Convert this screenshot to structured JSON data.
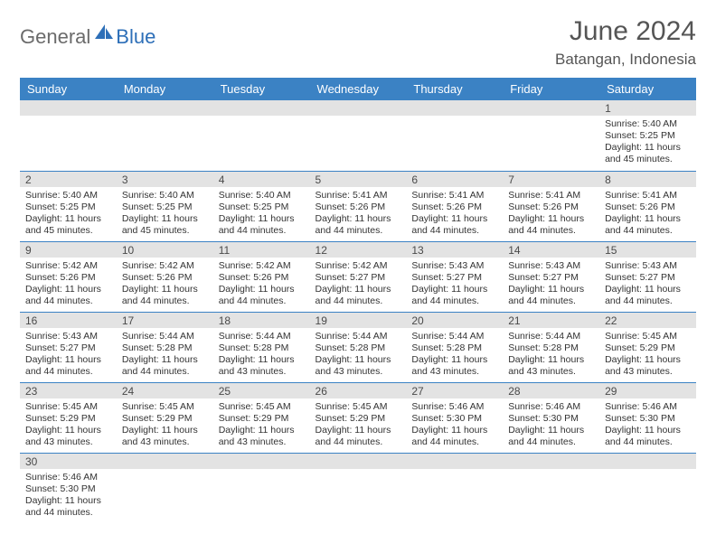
{
  "brand": {
    "part1": "General",
    "part2": "Blue"
  },
  "title": "June 2024",
  "subtitle": "Batangan, Indonesia",
  "colors": {
    "header_bg": "#3b82c4",
    "header_fg": "#ffffff",
    "daynum_bg": "#e3e3e3",
    "rule": "#3b82c4",
    "logo_gray": "#6b6b6b",
    "logo_blue": "#2d6fb8"
  },
  "weekdays": [
    "Sunday",
    "Monday",
    "Tuesday",
    "Wednesday",
    "Thursday",
    "Friday",
    "Saturday"
  ],
  "weeks": [
    [
      {
        "n": "",
        "sr": "",
        "ss": "",
        "dl": ""
      },
      {
        "n": "",
        "sr": "",
        "ss": "",
        "dl": ""
      },
      {
        "n": "",
        "sr": "",
        "ss": "",
        "dl": ""
      },
      {
        "n": "",
        "sr": "",
        "ss": "",
        "dl": ""
      },
      {
        "n": "",
        "sr": "",
        "ss": "",
        "dl": ""
      },
      {
        "n": "",
        "sr": "",
        "ss": "",
        "dl": ""
      },
      {
        "n": "1",
        "sr": "Sunrise: 5:40 AM",
        "ss": "Sunset: 5:25 PM",
        "dl": "Daylight: 11 hours and 45 minutes."
      }
    ],
    [
      {
        "n": "2",
        "sr": "Sunrise: 5:40 AM",
        "ss": "Sunset: 5:25 PM",
        "dl": "Daylight: 11 hours and 45 minutes."
      },
      {
        "n": "3",
        "sr": "Sunrise: 5:40 AM",
        "ss": "Sunset: 5:25 PM",
        "dl": "Daylight: 11 hours and 45 minutes."
      },
      {
        "n": "4",
        "sr": "Sunrise: 5:40 AM",
        "ss": "Sunset: 5:25 PM",
        "dl": "Daylight: 11 hours and 44 minutes."
      },
      {
        "n": "5",
        "sr": "Sunrise: 5:41 AM",
        "ss": "Sunset: 5:26 PM",
        "dl": "Daylight: 11 hours and 44 minutes."
      },
      {
        "n": "6",
        "sr": "Sunrise: 5:41 AM",
        "ss": "Sunset: 5:26 PM",
        "dl": "Daylight: 11 hours and 44 minutes."
      },
      {
        "n": "7",
        "sr": "Sunrise: 5:41 AM",
        "ss": "Sunset: 5:26 PM",
        "dl": "Daylight: 11 hours and 44 minutes."
      },
      {
        "n": "8",
        "sr": "Sunrise: 5:41 AM",
        "ss": "Sunset: 5:26 PM",
        "dl": "Daylight: 11 hours and 44 minutes."
      }
    ],
    [
      {
        "n": "9",
        "sr": "Sunrise: 5:42 AM",
        "ss": "Sunset: 5:26 PM",
        "dl": "Daylight: 11 hours and 44 minutes."
      },
      {
        "n": "10",
        "sr": "Sunrise: 5:42 AM",
        "ss": "Sunset: 5:26 PM",
        "dl": "Daylight: 11 hours and 44 minutes."
      },
      {
        "n": "11",
        "sr": "Sunrise: 5:42 AM",
        "ss": "Sunset: 5:26 PM",
        "dl": "Daylight: 11 hours and 44 minutes."
      },
      {
        "n": "12",
        "sr": "Sunrise: 5:42 AM",
        "ss": "Sunset: 5:27 PM",
        "dl": "Daylight: 11 hours and 44 minutes."
      },
      {
        "n": "13",
        "sr": "Sunrise: 5:43 AM",
        "ss": "Sunset: 5:27 PM",
        "dl": "Daylight: 11 hours and 44 minutes."
      },
      {
        "n": "14",
        "sr": "Sunrise: 5:43 AM",
        "ss": "Sunset: 5:27 PM",
        "dl": "Daylight: 11 hours and 44 minutes."
      },
      {
        "n": "15",
        "sr": "Sunrise: 5:43 AM",
        "ss": "Sunset: 5:27 PM",
        "dl": "Daylight: 11 hours and 44 minutes."
      }
    ],
    [
      {
        "n": "16",
        "sr": "Sunrise: 5:43 AM",
        "ss": "Sunset: 5:27 PM",
        "dl": "Daylight: 11 hours and 44 minutes."
      },
      {
        "n": "17",
        "sr": "Sunrise: 5:44 AM",
        "ss": "Sunset: 5:28 PM",
        "dl": "Daylight: 11 hours and 44 minutes."
      },
      {
        "n": "18",
        "sr": "Sunrise: 5:44 AM",
        "ss": "Sunset: 5:28 PM",
        "dl": "Daylight: 11 hours and 43 minutes."
      },
      {
        "n": "19",
        "sr": "Sunrise: 5:44 AM",
        "ss": "Sunset: 5:28 PM",
        "dl": "Daylight: 11 hours and 43 minutes."
      },
      {
        "n": "20",
        "sr": "Sunrise: 5:44 AM",
        "ss": "Sunset: 5:28 PM",
        "dl": "Daylight: 11 hours and 43 minutes."
      },
      {
        "n": "21",
        "sr": "Sunrise: 5:44 AM",
        "ss": "Sunset: 5:28 PM",
        "dl": "Daylight: 11 hours and 43 minutes."
      },
      {
        "n": "22",
        "sr": "Sunrise: 5:45 AM",
        "ss": "Sunset: 5:29 PM",
        "dl": "Daylight: 11 hours and 43 minutes."
      }
    ],
    [
      {
        "n": "23",
        "sr": "Sunrise: 5:45 AM",
        "ss": "Sunset: 5:29 PM",
        "dl": "Daylight: 11 hours and 43 minutes."
      },
      {
        "n": "24",
        "sr": "Sunrise: 5:45 AM",
        "ss": "Sunset: 5:29 PM",
        "dl": "Daylight: 11 hours and 43 minutes."
      },
      {
        "n": "25",
        "sr": "Sunrise: 5:45 AM",
        "ss": "Sunset: 5:29 PM",
        "dl": "Daylight: 11 hours and 43 minutes."
      },
      {
        "n": "26",
        "sr": "Sunrise: 5:45 AM",
        "ss": "Sunset: 5:29 PM",
        "dl": "Daylight: 11 hours and 44 minutes."
      },
      {
        "n": "27",
        "sr": "Sunrise: 5:46 AM",
        "ss": "Sunset: 5:30 PM",
        "dl": "Daylight: 11 hours and 44 minutes."
      },
      {
        "n": "28",
        "sr": "Sunrise: 5:46 AM",
        "ss": "Sunset: 5:30 PM",
        "dl": "Daylight: 11 hours and 44 minutes."
      },
      {
        "n": "29",
        "sr": "Sunrise: 5:46 AM",
        "ss": "Sunset: 5:30 PM",
        "dl": "Daylight: 11 hours and 44 minutes."
      }
    ],
    [
      {
        "n": "30",
        "sr": "Sunrise: 5:46 AM",
        "ss": "Sunset: 5:30 PM",
        "dl": "Daylight: 11 hours and 44 minutes."
      },
      {
        "n": "",
        "sr": "",
        "ss": "",
        "dl": ""
      },
      {
        "n": "",
        "sr": "",
        "ss": "",
        "dl": ""
      },
      {
        "n": "",
        "sr": "",
        "ss": "",
        "dl": ""
      },
      {
        "n": "",
        "sr": "",
        "ss": "",
        "dl": ""
      },
      {
        "n": "",
        "sr": "",
        "ss": "",
        "dl": ""
      },
      {
        "n": "",
        "sr": "",
        "ss": "",
        "dl": ""
      }
    ]
  ]
}
